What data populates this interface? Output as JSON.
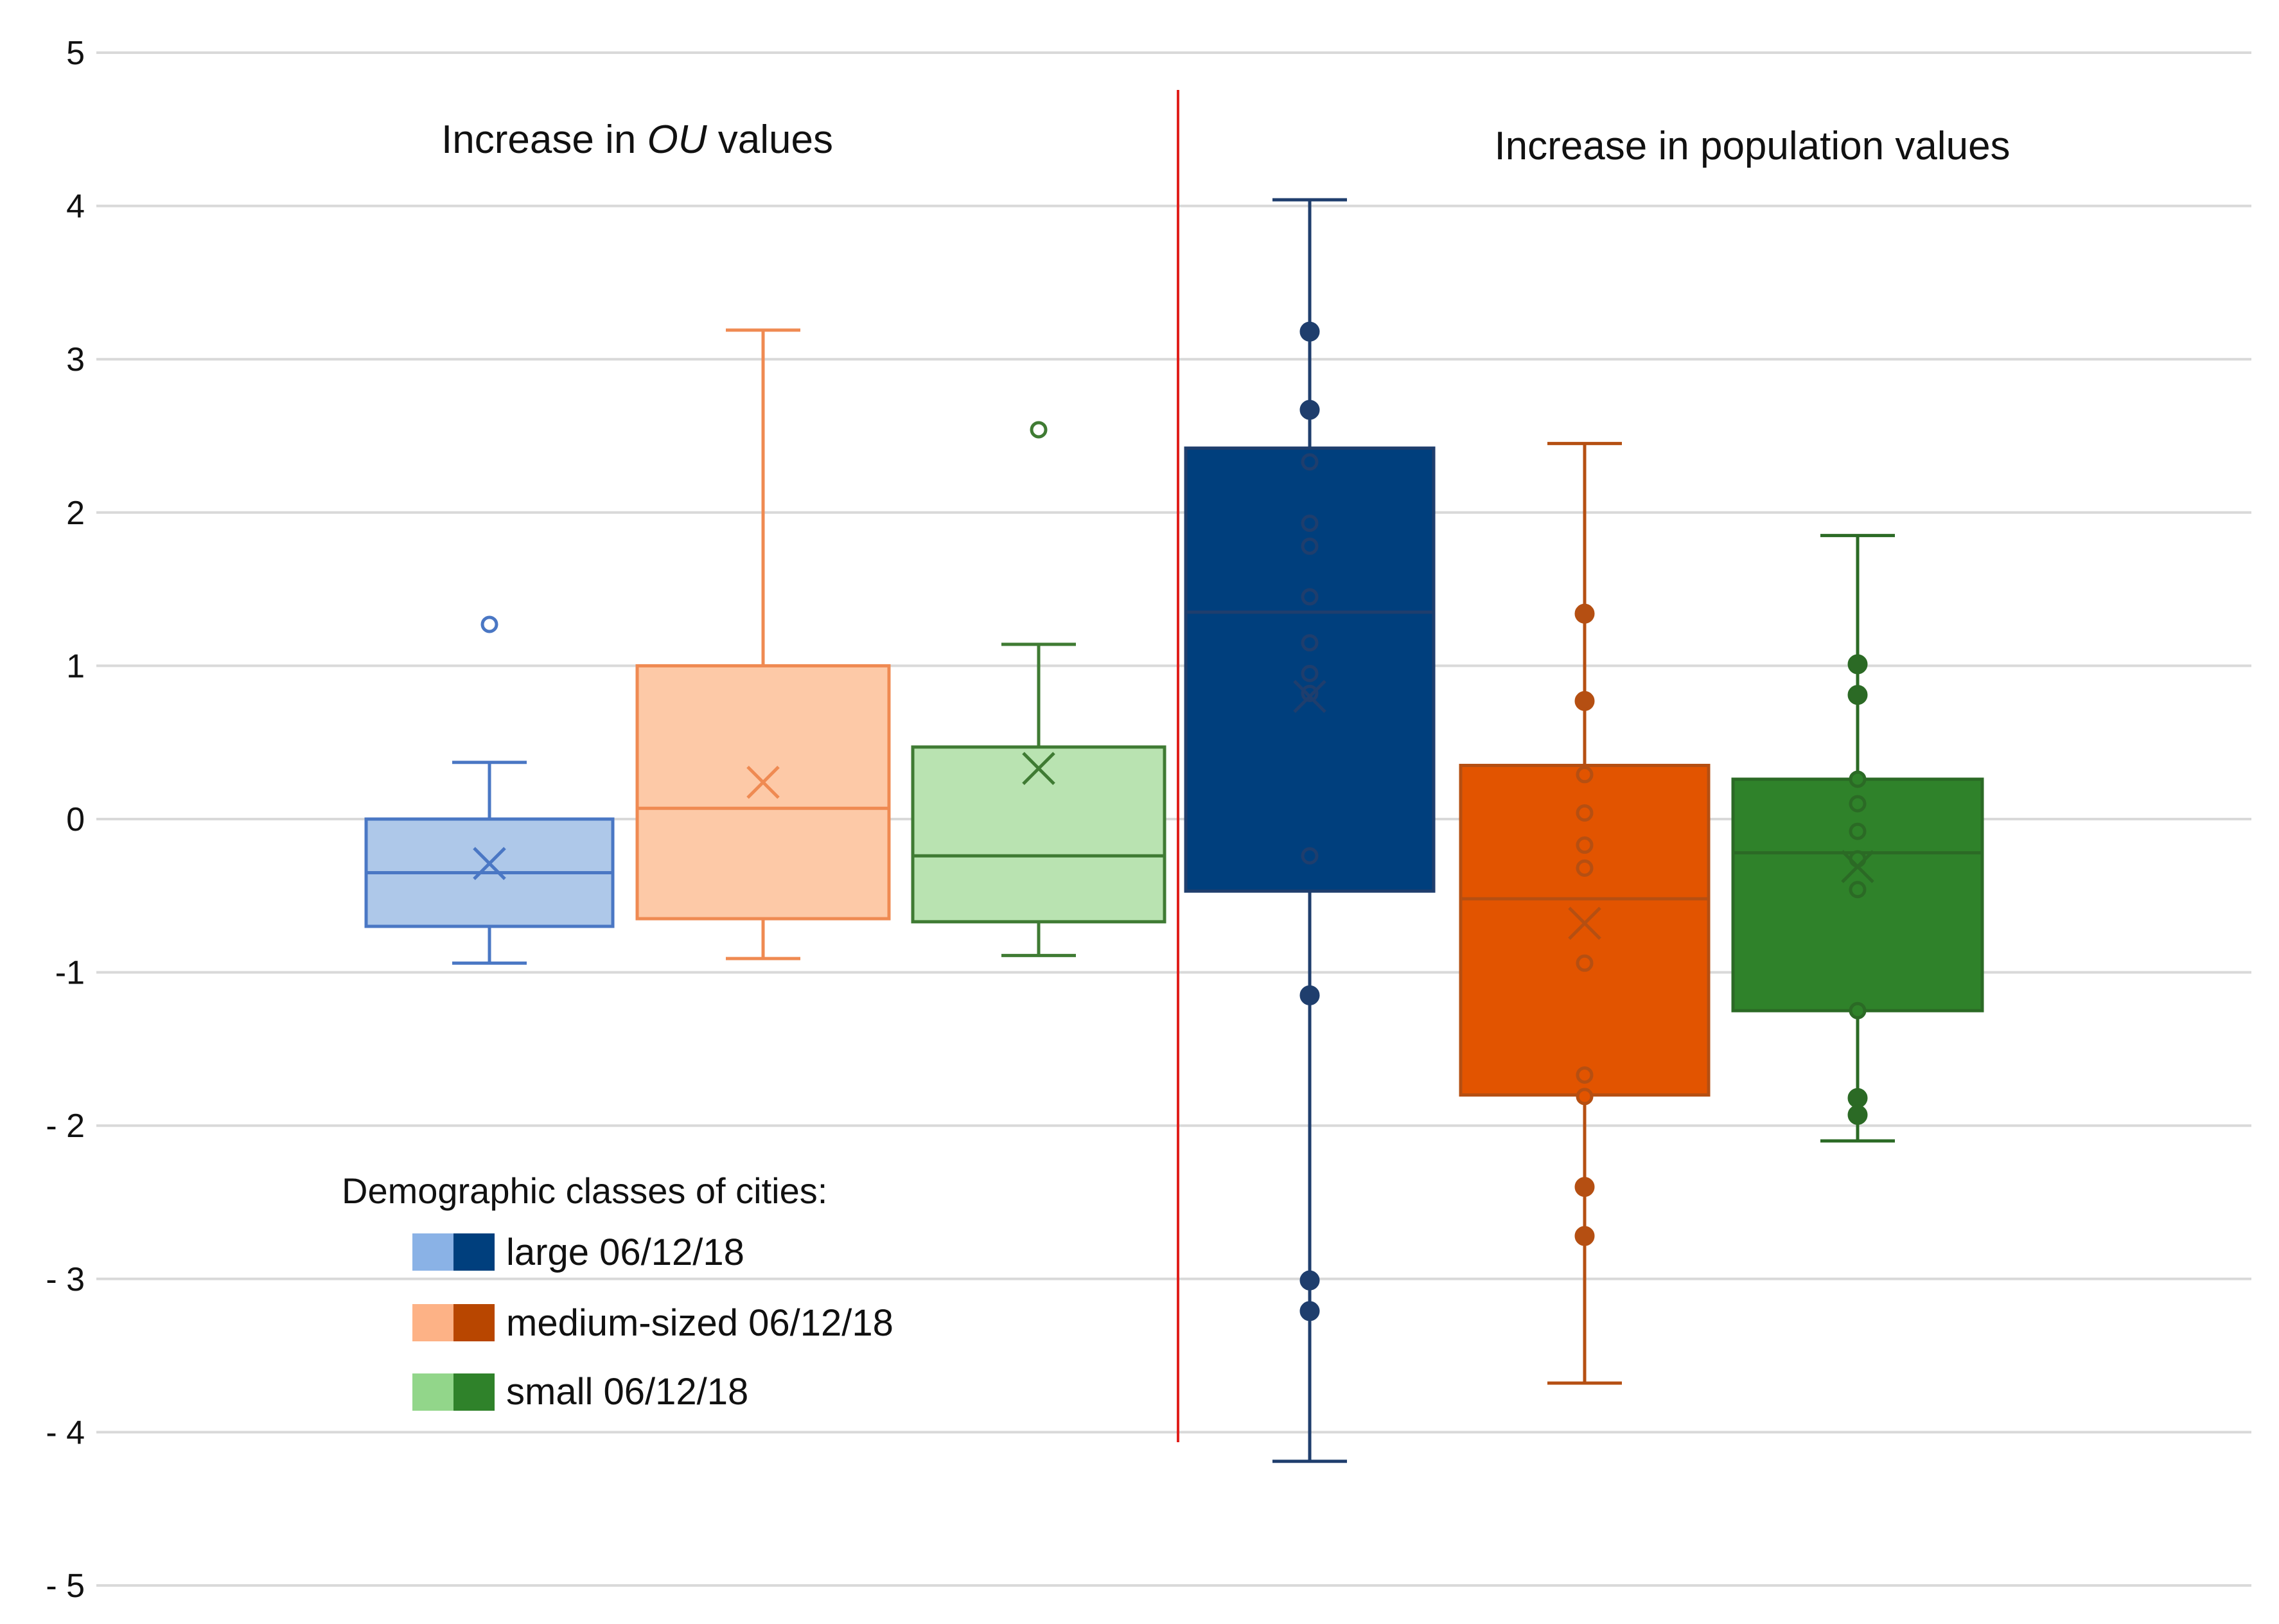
{
  "chart_data": {
    "type": "box",
    "title": "",
    "xlabel": "",
    "ylabel": "",
    "ylim": [
      -5,
      5
    ],
    "yticks": [
      5,
      4,
      3,
      2,
      1,
      0,
      -1,
      -2,
      -3,
      -4,
      -5
    ],
    "ytick_labels": [
      "5",
      "4",
      "3",
      "2",
      "1",
      "0",
      "-1",
      "- 2",
      "- 3",
      "- 4",
      "- 5"
    ],
    "grid": true,
    "divider": {
      "between_panels": true,
      "color": "#e0201c"
    },
    "panels": [
      {
        "title_before": "Increase in ",
        "title_italic": "OU",
        "title_after": " values",
        "series": [
          {
            "name": "large 06/12/18",
            "fill": "#aec8e9",
            "stroke": "#4a77c4",
            "min": -0.94,
            "q1": -0.7,
            "median": -0.35,
            "q3": 0.0,
            "max": 0.37,
            "mean": -0.29,
            "points": [
              {
                "y": 1.27,
                "filled": false
              }
            ]
          },
          {
            "name": "medium-sized 06/12/18",
            "fill": "#fdc9a7",
            "stroke": "#ef8a52",
            "min": -0.91,
            "q1": -0.65,
            "median": 0.07,
            "q3": 1.0,
            "max": 3.19,
            "mean": 0.24,
            "points": []
          },
          {
            "name": "small 06/12/18",
            "fill": "#b9e3b1",
            "stroke": "#3f7b33",
            "min": -0.89,
            "q1": -0.67,
            "median": -0.24,
            "q3": 0.47,
            "max": 1.14,
            "mean": 0.33,
            "points": [
              {
                "y": 2.54,
                "filled": false
              }
            ]
          }
        ]
      },
      {
        "title_before": "Increase in population values",
        "title_italic": "",
        "title_after": "",
        "series": [
          {
            "name": "large 06/12/18",
            "fill": "#003f7d",
            "stroke": "#1f3e6d",
            "min": -4.19,
            "q1": -0.47,
            "median": 1.35,
            "q3": 2.42,
            "max": 4.04,
            "mean": 0.8,
            "points": [
              {
                "y": 3.18,
                "filled": true
              },
              {
                "y": 2.67,
                "filled": true
              },
              {
                "y": 2.33,
                "filled": false
              },
              {
                "y": 1.93,
                "filled": false
              },
              {
                "y": 1.78,
                "filled": false
              },
              {
                "y": 1.45,
                "filled": false
              },
              {
                "y": 1.15,
                "filled": false
              },
              {
                "y": 0.95,
                "filled": false
              },
              {
                "y": 0.82,
                "filled": false
              },
              {
                "y": -0.24,
                "filled": false
              },
              {
                "y": -1.15,
                "filled": true
              },
              {
                "y": -3.01,
                "filled": true
              },
              {
                "y": -3.21,
                "filled": true
              }
            ]
          },
          {
            "name": "medium-sized 06/12/18",
            "fill": "#e25400",
            "stroke": "#b54f12",
            "min": -3.68,
            "q1": -1.8,
            "median": -0.52,
            "q3": 0.35,
            "max": 2.45,
            "mean": -0.68,
            "points": [
              {
                "y": 1.34,
                "filled": true
              },
              {
                "y": 0.77,
                "filled": true
              },
              {
                "y": 0.29,
                "filled": false
              },
              {
                "y": 0.04,
                "filled": false
              },
              {
                "y": -0.17,
                "filled": false
              },
              {
                "y": -0.32,
                "filled": false
              },
              {
                "y": -0.94,
                "filled": false
              },
              {
                "y": -1.67,
                "filled": false
              },
              {
                "y": -1.81,
                "filled": false
              },
              {
                "y": -2.4,
                "filled": true
              },
              {
                "y": -2.72,
                "filled": true
              }
            ]
          },
          {
            "name": "small 06/12/18",
            "fill": "#2f822a",
            "stroke": "#2b6a25",
            "min": -2.1,
            "q1": -1.25,
            "median": -0.22,
            "q3": 0.26,
            "max": 1.85,
            "mean": -0.31,
            "points": [
              {
                "y": 1.01,
                "filled": true
              },
              {
                "y": 0.81,
                "filled": true
              },
              {
                "y": 0.26,
                "filled": false
              },
              {
                "y": 0.1,
                "filled": false
              },
              {
                "y": -0.08,
                "filled": false
              },
              {
                "y": -0.26,
                "filled": false
              },
              {
                "y": -0.46,
                "filled": false
              },
              {
                "y": -1.25,
                "filled": false
              },
              {
                "y": -1.82,
                "filled": true
              },
              {
                "y": -1.93,
                "filled": true
              }
            ]
          }
        ]
      }
    ],
    "legend": {
      "title": "Demographic classes of cities:",
      "placement": "lower-left",
      "items": [
        {
          "label": "large 06/12/18",
          "light": "#8ab2e6",
          "dark": "#003f7d"
        },
        {
          "label": "medium-sized 06/12/18",
          "light": "#fdb286",
          "dark": "#b84600"
        },
        {
          "label": "small 06/12/18",
          "light": "#92d68a",
          "dark": "#2f822a"
        }
      ]
    }
  }
}
